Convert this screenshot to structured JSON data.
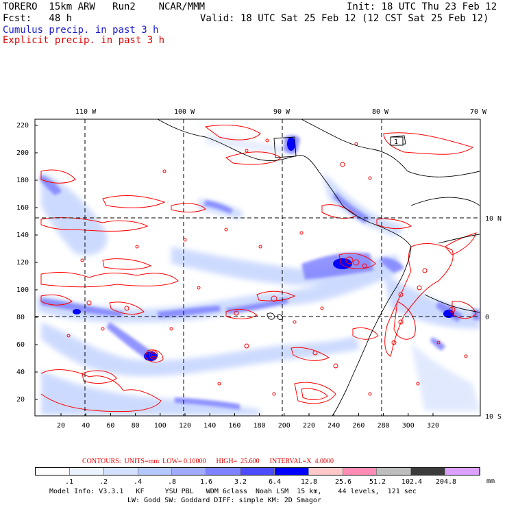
{
  "header": {
    "line1_left": "TORERO  15km ARW   Run2    NCAR/MMM",
    "line1_right": "Init: 18 UTC Thu 23 Feb 12",
    "line2_left": "Fcst:   48 h",
    "line2_right": "Valid: 18 UTC Sat 25 Feb 12 (12 CST Sat 25 Feb 12)",
    "line3": "Cumulus precip. in past 3 h",
    "line4": "Explicit precip. in past 3 h"
  },
  "map": {
    "lon_labels": [
      "110 W",
      "100 W",
      "90 W",
      "80 W",
      "70 W"
    ],
    "lat_labels": [
      "10 N",
      "0",
      "10 S"
    ],
    "y_ticks": [
      "220",
      "200",
      "180",
      "160",
      "140",
      "120",
      "100",
      "80",
      "60",
      "40",
      "20"
    ],
    "x_ticks": [
      "20",
      "40",
      "60",
      "80",
      "100",
      "120",
      "140",
      "160",
      "180",
      "200",
      "220",
      "240",
      "260",
      "280",
      "300",
      "320"
    ],
    "box_label": "1",
    "colors": {
      "explicit_contour": "#ff0000",
      "cumulus_light": "#c8d7ff",
      "cumulus_mid": "#7a82ff",
      "cumulus_high": "#1919ff",
      "coast": "#000000"
    }
  },
  "footer": {
    "contours_label": "CONTOURS:  UNITS=mm  LOW= 0.10000      HIGH=  25.600      INTERVAL=X  4.0000",
    "legend_values": [
      ".1",
      ".2",
      ".4",
      ".8",
      "1.6",
      "3.2",
      "6.4",
      "12.8",
      "25.6",
      "51.2",
      "102.4",
      "204.8"
    ],
    "legend_unit": "mm",
    "legend_colors": [
      "#ffffff",
      "#ebf2ff",
      "#d2e1ff",
      "#b4c8ff",
      "#a0aaff",
      "#7f82ff",
      "#4b4bff",
      "#0000ff",
      "#ffc8c8",
      "#ff8cb4",
      "#bebebe",
      "#3c3c3c",
      "#dca0ff"
    ],
    "model_info_1": "Model Info: V3.3.1   KF     YSU PBL   WDM 6class  Noah LSM  15 km,    44 levels,  121 sec",
    "model_info_2": "LW: Godd SW: Goddard DIFF: simple KM: 2D Smagor"
  }
}
